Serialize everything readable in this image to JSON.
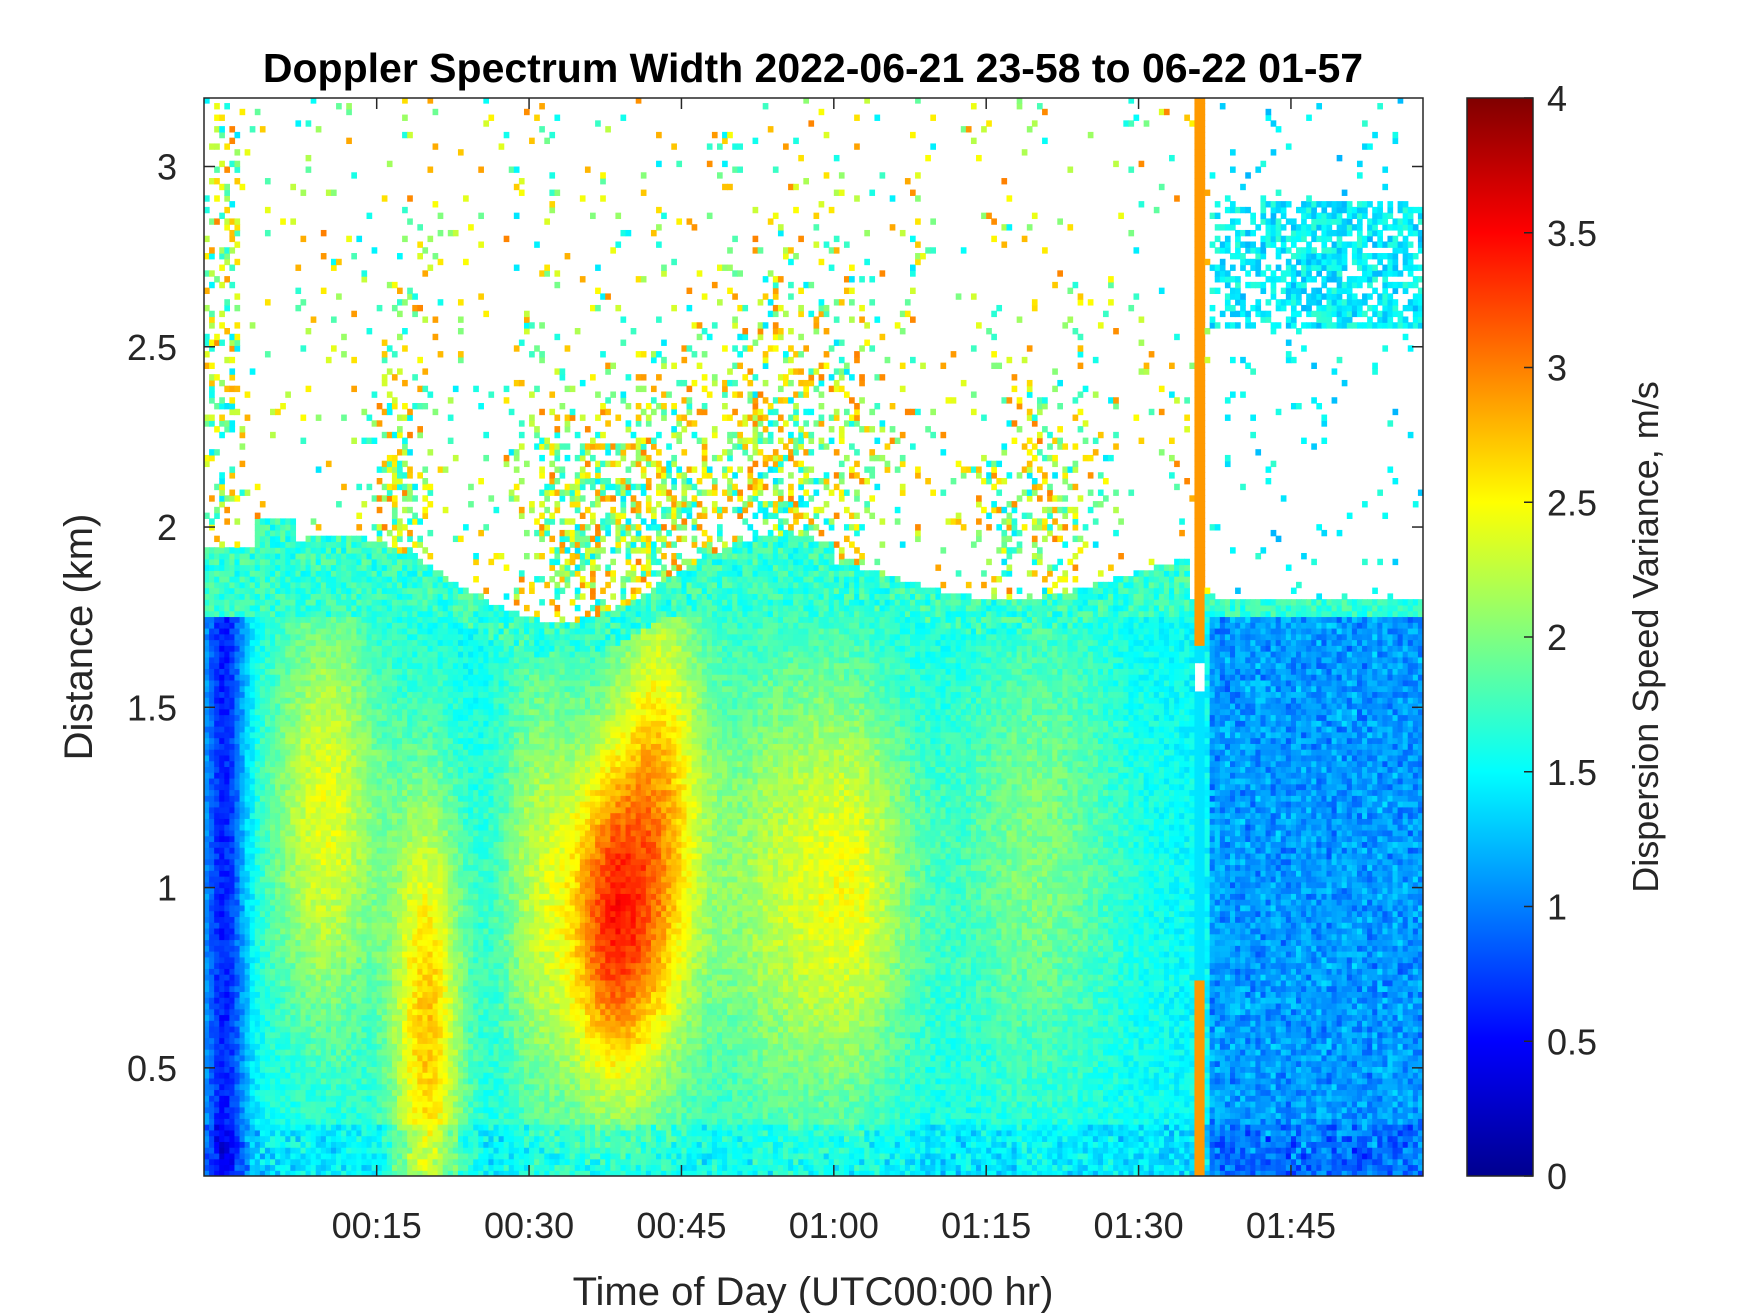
{
  "chart_data": {
    "type": "heatmap",
    "title": "Doppler Spectrum Width 2022-06-21 23-58 to 06-22 01-57",
    "xlabel": "Time of Day (UTC00:00 hr)",
    "ylabel": "Distance (km)",
    "colorbar_label": "Dispersion Speed Variance, m/s",
    "colormap": "jet",
    "x_ticks": [
      "00:15",
      "00:30",
      "00:45",
      "01:00",
      "01:15",
      "01:30",
      "01:45"
    ],
    "x_tick_minutes": [
      15,
      30,
      45,
      60,
      75,
      90,
      105
    ],
    "xlim_minutes": [
      -2,
      118
    ],
    "y_ticks": [
      "0.5",
      "1",
      "1.5",
      "2",
      "2.5",
      "3"
    ],
    "y_tick_values": [
      0.5,
      1,
      1.5,
      2,
      2.5,
      3
    ],
    "ylim": [
      0.2,
      3.19
    ],
    "colorbar_ticks": [
      "0",
      "0.5",
      "1",
      "1.5",
      "2",
      "2.5",
      "3",
      "3.5",
      "4"
    ],
    "colorbar_values": [
      0,
      0.5,
      1,
      1.5,
      2,
      2.5,
      3,
      3.5,
      4
    ],
    "clim": [
      0,
      4
    ],
    "grid": false,
    "features": [
      {
        "time_minutes": [
          -2,
          118
        ],
        "height_km": [
          0.2,
          1.75
        ],
        "value": 1.4,
        "note": "lower layer"
      },
      {
        "time_minutes": [
          35,
          42
        ],
        "height_km": [
          0.4,
          1.3
        ],
        "value": 3.0
      },
      {
        "time_minutes": [
          18,
          22
        ],
        "height_km": [
          0.2,
          1.0
        ],
        "value": 2.8
      },
      {
        "time_minutes": [
          95.5,
          96.5
        ],
        "height_km": [
          0.2,
          3.19
        ],
        "value": 2.9
      }
    ]
  }
}
